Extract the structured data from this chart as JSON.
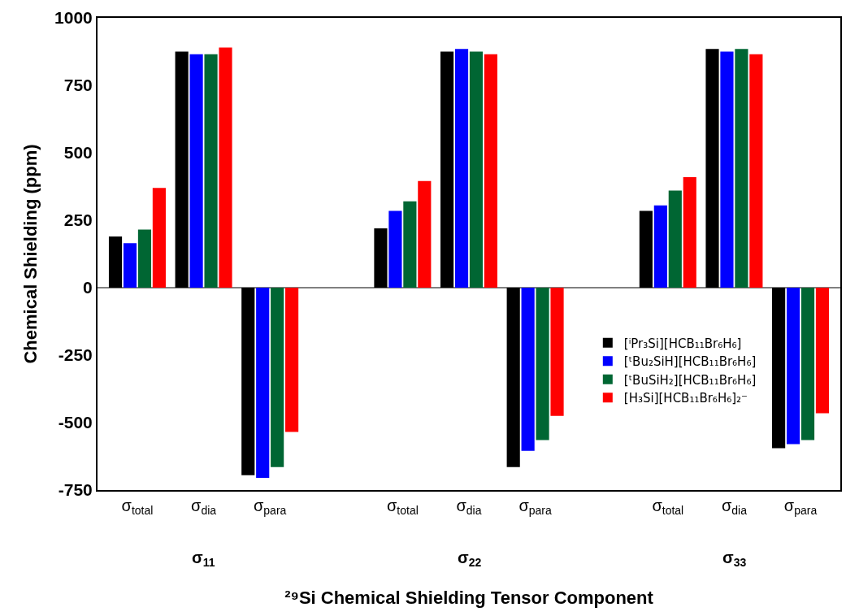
{
  "chart_data": {
    "type": "bar",
    "xlabel": "²⁹Si Chemical Shielding Tensor Component",
    "ylabel": "Chemical Shielding (ppm)",
    "categories": [
      "σ$_{total}$",
      "σ$_{dia}$",
      "σ$_{para}$",
      null,
      "σ$_{total}$",
      "σ$_{dia}$",
      "σ$_{para}$",
      null,
      "σ$_{total}$",
      "σ$_{dia}$",
      "σ$_{para}$"
    ],
    "series": [
      {
        "name": "[ⁱPr₃Si][HCB₁₁Br₆H₆]",
        "color": "#000000",
        "values": [
          190,
          875,
          -695,
          null,
          220,
          875,
          -665,
          null,
          285,
          885,
          -595
        ]
      },
      {
        "name": "[ᵗBu₂SiH][HCB₁₁Br₆H₆]",
        "color": "#0000ff",
        "values": [
          165,
          865,
          -705,
          null,
          285,
          885,
          -605,
          null,
          305,
          875,
          -580
        ]
      },
      {
        "name": "[ᵗBuSiH₂][HCB₁₁Br₆H₆]",
        "color": "#006633",
        "values": [
          215,
          865,
          -665,
          null,
          320,
          875,
          -565,
          null,
          360,
          885,
          -565
        ]
      },
      {
        "name": "[H₃Si][HCB₁₁Br₆H₆]₂⁻",
        "color": "#ff0000",
        "values": [
          370,
          890,
          -535,
          null,
          395,
          865,
          -475,
          null,
          410,
          865,
          -465
        ]
      }
    ],
    "annotations": [
      "σ$_{11}$",
      "σ$_{22}$",
      "σ$_{33}$"
    ],
    "ylim": [
      -750,
      1000
    ],
    "yticks": [
      -750,
      -500,
      -250,
      0,
      250,
      500,
      750,
      1000
    ],
    "ref_lines": [
      {
        "axis": "y",
        "value": 0,
        "color": "#000000"
      }
    ],
    "grid": false,
    "legend": "right"
  }
}
